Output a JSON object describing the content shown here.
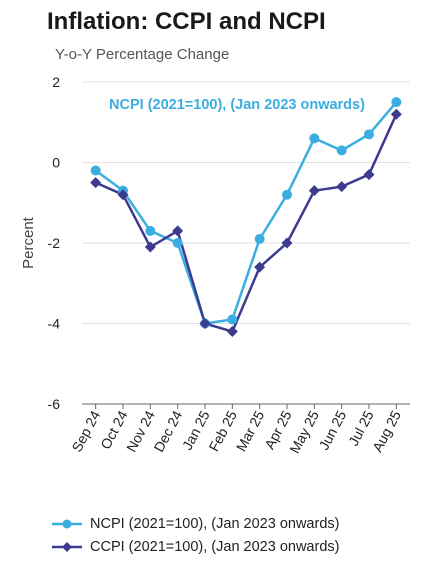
{
  "title": "Inflation: CCPI and NCPI",
  "subtitle": "Y-o-Y Percentage Change",
  "chart_data": {
    "type": "line",
    "title": "Inflation: CCPI and NCPI",
    "subtitle": "Y-o-Y Percentage Change",
    "xlabel": "",
    "ylabel": "Percent",
    "categories": [
      "Sep 24",
      "Oct 24",
      "Nov 24",
      "Dec 24",
      "Jan 25",
      "Feb 25",
      "Mar 25",
      "Apr 25",
      "May 25",
      "Jun 25",
      "Jul 25",
      "Aug 25"
    ],
    "ylim": [
      -6,
      2
    ],
    "yticks": [
      2,
      0,
      -2,
      -4,
      -6
    ],
    "grid": true,
    "legend_position": "bottom",
    "series": [
      {
        "name": "NCPI (2021=100), (Jan 2023 onwards)",
        "color": "#3aaee0",
        "marker": "circle",
        "values": [
          -0.2,
          -0.7,
          -1.7,
          -2.0,
          -4.0,
          -3.9,
          -1.9,
          -0.8,
          0.6,
          0.3,
          0.7,
          1.5
        ]
      },
      {
        "name": "CCPI (2021=100), (Jan 2023 onwards)",
        "color": "#3d3b8e",
        "marker": "diamond",
        "values": [
          -0.5,
          -0.8,
          -2.1,
          -1.7,
          -4.0,
          -4.2,
          -2.6,
          -2.0,
          -0.7,
          -0.6,
          -0.3,
          1.2
        ]
      }
    ],
    "annotations": [
      {
        "text": "NCPI (2021=100), (Jan 2023 onwards)",
        "color": "#3aaee0"
      }
    ]
  }
}
